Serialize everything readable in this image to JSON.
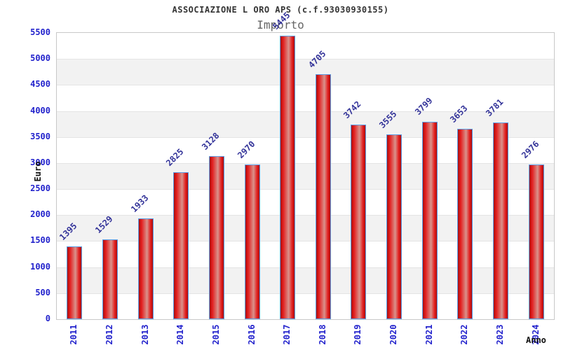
{
  "header": {
    "title": "ASSOCIAZIONE L ORO APS (c.f.93030930155)",
    "subtitle": "Importo"
  },
  "chart_data": {
    "type": "bar",
    "title": "ASSOCIAZIONE L ORO APS (c.f.93030930155)",
    "subtitle": "Importo",
    "xlabel": "Anno",
    "ylabel": "Euro",
    "categories": [
      "2011",
      "2012",
      "2013",
      "2014",
      "2015",
      "2016",
      "2017",
      "2018",
      "2019",
      "2020",
      "2021",
      "2022",
      "2023",
      "2024"
    ],
    "values": [
      1395,
      1529,
      1933,
      2825,
      3128,
      2970,
      5445,
      4705,
      3742,
      3555,
      3799,
      3653,
      3781,
      2976
    ],
    "ylim": [
      0,
      5500
    ],
    "ytick_step": 500,
    "grid": true,
    "legend": false,
    "colors": {
      "bar_edge": "#a81010",
      "bar_mid": "#e31b1b",
      "bar_highlight": "#d9928c",
      "bar_border": "#5a9fe8",
      "tick_label": "#2222cc",
      "value_label": "#333399",
      "band_alt": "#f2f2f2",
      "band_main": "#ffffff",
      "gridline": "#e4e4e4",
      "plot_border": "#c8c8c8"
    }
  }
}
